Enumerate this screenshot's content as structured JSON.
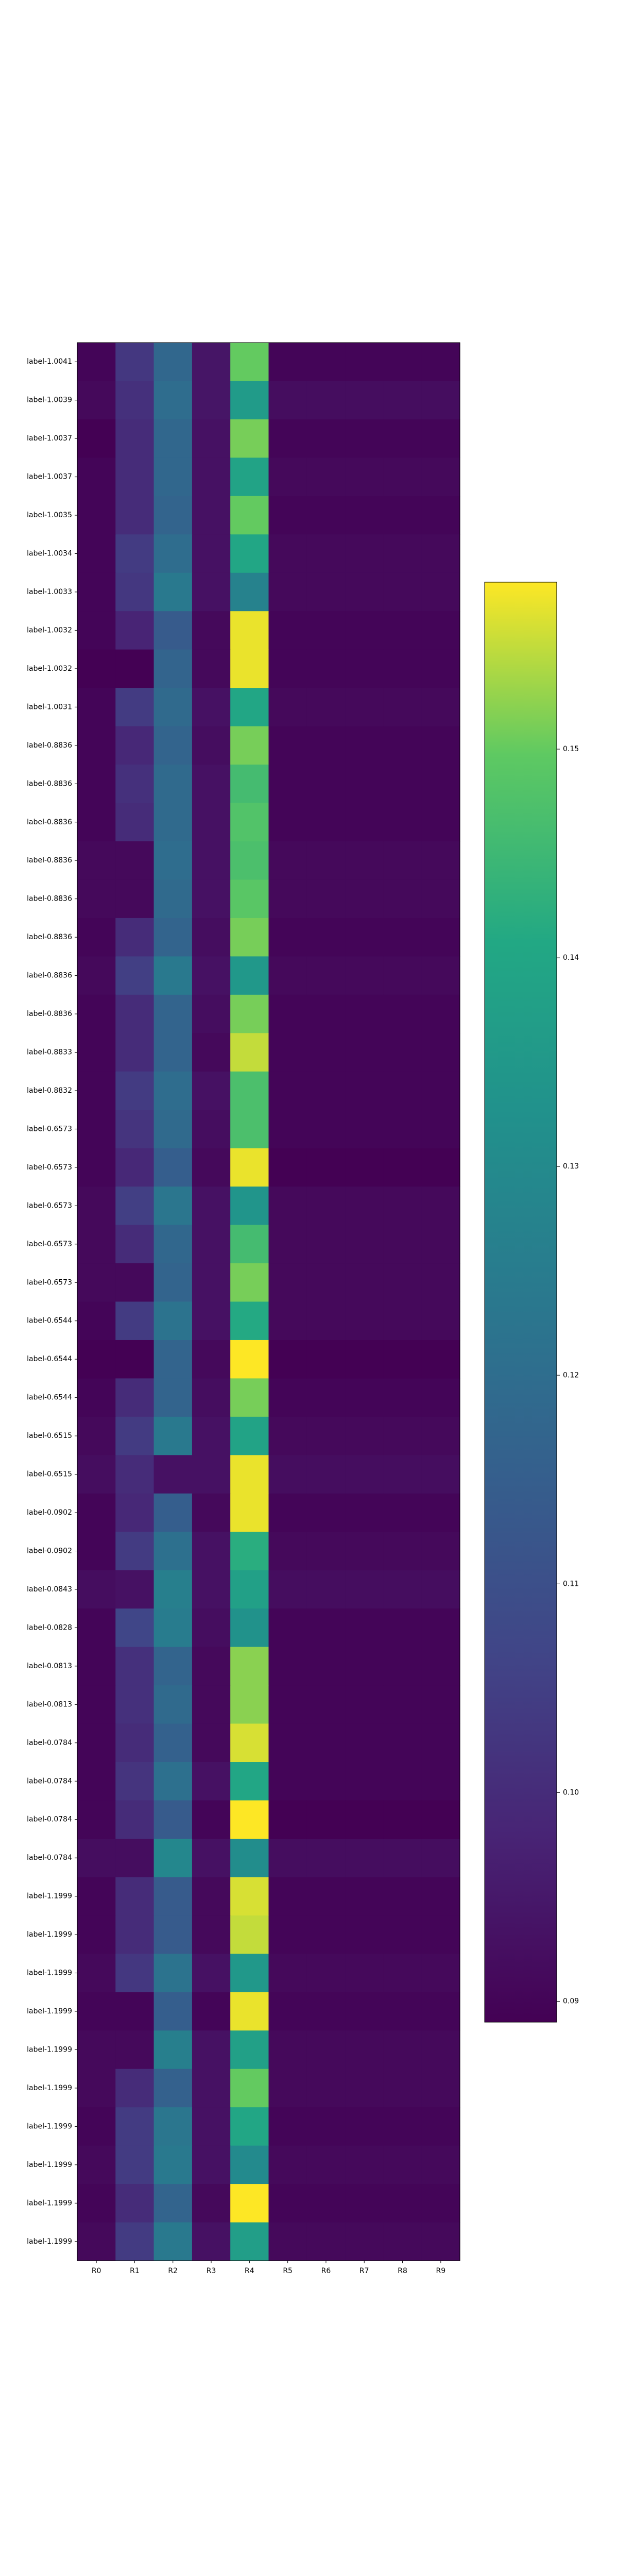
{
  "chart_data": {
    "type": "heatmap",
    "title": "",
    "xlabel": "",
    "ylabel": "",
    "columns": [
      "R0",
      "R1",
      "R2",
      "R3",
      "R4",
      "R5",
      "R6",
      "R7",
      "R8",
      "R9"
    ],
    "rows": [
      "label-1.0041",
      "label-1.0039",
      "label-1.0037",
      "label-1.0037",
      "label-1.0035",
      "label-1.0034",
      "label-1.0033",
      "label-1.0032",
      "label-1.0032",
      "label-1.0031",
      "label-0.8836",
      "label-0.8836",
      "label-0.8836",
      "label-0.8836",
      "label-0.8836",
      "label-0.8836",
      "label-0.8836",
      "label-0.8836",
      "label-0.8833",
      "label-0.8832",
      "label-0.6573",
      "label-0.6573",
      "label-0.6573",
      "label-0.6573",
      "label-0.6573",
      "label-0.6544",
      "label-0.6544",
      "label-0.6544",
      "label-0.6515",
      "label-0.6515",
      "label-0.0902",
      "label-0.0902",
      "label-0.0843",
      "label-0.0828",
      "label-0.0813",
      "label-0.0813",
      "label-0.0784",
      "label-0.0784",
      "label-0.0784",
      "label-0.0784",
      "label-1.1999",
      "label-1.1999",
      "label-1.1999",
      "label-1.1999",
      "label-1.1999",
      "label-1.1999",
      "label-1.1999",
      "label-1.1999",
      "label-1.1999",
      "label-1.1999"
    ],
    "values": [
      [
        0.09,
        0.103,
        0.118,
        0.094,
        0.15,
        0.09,
        0.09,
        0.09,
        0.09,
        0.09
      ],
      [
        0.091,
        0.101,
        0.12,
        0.094,
        0.136,
        0.092,
        0.092,
        0.092,
        0.092,
        0.092
      ],
      [
        0.089,
        0.1,
        0.118,
        0.093,
        0.151,
        0.09,
        0.09,
        0.09,
        0.09,
        0.09
      ],
      [
        0.09,
        0.1,
        0.118,
        0.093,
        0.139,
        0.091,
        0.091,
        0.091,
        0.091,
        0.091
      ],
      [
        0.09,
        0.1,
        0.117,
        0.093,
        0.15,
        0.09,
        0.09,
        0.09,
        0.09,
        0.09
      ],
      [
        0.09,
        0.104,
        0.12,
        0.093,
        0.14,
        0.091,
        0.091,
        0.091,
        0.091,
        0.091
      ],
      [
        0.09,
        0.103,
        0.124,
        0.093,
        0.127,
        0.091,
        0.091,
        0.091,
        0.091,
        0.091
      ],
      [
        0.09,
        0.098,
        0.114,
        0.091,
        0.157,
        0.09,
        0.09,
        0.09,
        0.09,
        0.09
      ],
      [
        0.089,
        0.089,
        0.117,
        0.091,
        0.157,
        0.09,
        0.09,
        0.09,
        0.09,
        0.09
      ],
      [
        0.09,
        0.104,
        0.119,
        0.093,
        0.14,
        0.091,
        0.091,
        0.091,
        0.091,
        0.091
      ],
      [
        0.09,
        0.099,
        0.117,
        0.092,
        0.151,
        0.09,
        0.09,
        0.09,
        0.09,
        0.09
      ],
      [
        0.09,
        0.101,
        0.119,
        0.093,
        0.146,
        0.09,
        0.09,
        0.09,
        0.09,
        0.09
      ],
      [
        0.09,
        0.1,
        0.119,
        0.093,
        0.148,
        0.09,
        0.09,
        0.09,
        0.09,
        0.09
      ],
      [
        0.091,
        0.091,
        0.12,
        0.093,
        0.147,
        0.091,
        0.091,
        0.091,
        0.091,
        0.091
      ],
      [
        0.091,
        0.091,
        0.119,
        0.093,
        0.149,
        0.091,
        0.091,
        0.091,
        0.091,
        0.091
      ],
      [
        0.09,
        0.1,
        0.117,
        0.092,
        0.151,
        0.09,
        0.09,
        0.09,
        0.09,
        0.09
      ],
      [
        0.091,
        0.105,
        0.124,
        0.093,
        0.135,
        0.091,
        0.091,
        0.091,
        0.091,
        0.091
      ],
      [
        0.09,
        0.1,
        0.117,
        0.092,
        0.151,
        0.09,
        0.09,
        0.09,
        0.09,
        0.09
      ],
      [
        0.09,
        0.1,
        0.117,
        0.091,
        0.155,
        0.09,
        0.09,
        0.09,
        0.09,
        0.09
      ],
      [
        0.09,
        0.104,
        0.12,
        0.093,
        0.147,
        0.09,
        0.09,
        0.09,
        0.09,
        0.09
      ],
      [
        0.09,
        0.102,
        0.119,
        0.092,
        0.147,
        0.09,
        0.09,
        0.09,
        0.09,
        0.09
      ],
      [
        0.09,
        0.099,
        0.115,
        0.091,
        0.157,
        0.089,
        0.089,
        0.089,
        0.089,
        0.089
      ],
      [
        0.091,
        0.105,
        0.123,
        0.093,
        0.134,
        0.091,
        0.091,
        0.091,
        0.091,
        0.091
      ],
      [
        0.091,
        0.1,
        0.118,
        0.093,
        0.146,
        0.091,
        0.091,
        0.091,
        0.091,
        0.091
      ],
      [
        0.091,
        0.091,
        0.117,
        0.093,
        0.151,
        0.091,
        0.091,
        0.091,
        0.091,
        0.091
      ],
      [
        0.09,
        0.104,
        0.122,
        0.093,
        0.141,
        0.091,
        0.091,
        0.091,
        0.091,
        0.091
      ],
      [
        0.089,
        0.089,
        0.117,
        0.091,
        0.158,
        0.089,
        0.089,
        0.089,
        0.089,
        0.089
      ],
      [
        0.09,
        0.1,
        0.117,
        0.092,
        0.151,
        0.09,
        0.09,
        0.09,
        0.09,
        0.09
      ],
      [
        0.091,
        0.104,
        0.124,
        0.093,
        0.139,
        0.091,
        0.091,
        0.091,
        0.091,
        0.091
      ],
      [
        0.092,
        0.1,
        0.093,
        0.093,
        0.157,
        0.092,
        0.092,
        0.092,
        0.092,
        0.092
      ],
      [
        0.09,
        0.099,
        0.115,
        0.091,
        0.157,
        0.09,
        0.09,
        0.09,
        0.09,
        0.09
      ],
      [
        0.09,
        0.104,
        0.121,
        0.093,
        0.142,
        0.091,
        0.091,
        0.091,
        0.091,
        0.091
      ],
      [
        0.092,
        0.093,
        0.126,
        0.093,
        0.138,
        0.092,
        0.092,
        0.092,
        0.092,
        0.092
      ],
      [
        0.09,
        0.107,
        0.125,
        0.092,
        0.133,
        0.09,
        0.09,
        0.09,
        0.09,
        0.09
      ],
      [
        0.09,
        0.101,
        0.117,
        0.091,
        0.152,
        0.09,
        0.09,
        0.09,
        0.09,
        0.09
      ],
      [
        0.09,
        0.101,
        0.119,
        0.091,
        0.152,
        0.09,
        0.09,
        0.09,
        0.09,
        0.09
      ],
      [
        0.09,
        0.1,
        0.116,
        0.091,
        0.156,
        0.09,
        0.09,
        0.09,
        0.09,
        0.09
      ],
      [
        0.09,
        0.102,
        0.121,
        0.093,
        0.14,
        0.09,
        0.09,
        0.09,
        0.09,
        0.09
      ],
      [
        0.09,
        0.1,
        0.114,
        0.09,
        0.158,
        0.089,
        0.089,
        0.089,
        0.089,
        0.089
      ],
      [
        0.092,
        0.092,
        0.129,
        0.093,
        0.131,
        0.092,
        0.092,
        0.092,
        0.092,
        0.092
      ],
      [
        0.09,
        0.1,
        0.114,
        0.091,
        0.156,
        0.09,
        0.09,
        0.09,
        0.09,
        0.09
      ],
      [
        0.09,
        0.1,
        0.114,
        0.091,
        0.155,
        0.09,
        0.09,
        0.09,
        0.09,
        0.09
      ],
      [
        0.091,
        0.103,
        0.122,
        0.093,
        0.135,
        0.091,
        0.091,
        0.091,
        0.091,
        0.091
      ],
      [
        0.09,
        0.09,
        0.115,
        0.09,
        0.157,
        0.09,
        0.09,
        0.09,
        0.09,
        0.09
      ],
      [
        0.091,
        0.091,
        0.126,
        0.093,
        0.138,
        0.091,
        0.091,
        0.091,
        0.091,
        0.091
      ],
      [
        0.091,
        0.1,
        0.116,
        0.093,
        0.15,
        0.091,
        0.091,
        0.091,
        0.091,
        0.091
      ],
      [
        0.09,
        0.104,
        0.123,
        0.093,
        0.14,
        0.09,
        0.09,
        0.09,
        0.09,
        0.09
      ],
      [
        0.091,
        0.104,
        0.124,
        0.093,
        0.13,
        0.091,
        0.091,
        0.091,
        0.091,
        0.091
      ],
      [
        0.09,
        0.1,
        0.117,
        0.091,
        0.158,
        0.09,
        0.09,
        0.09,
        0.09,
        0.09
      ],
      [
        0.091,
        0.104,
        0.124,
        0.093,
        0.137,
        0.091,
        0.091,
        0.091,
        0.091,
        0.091
      ]
    ],
    "colormap": "viridis",
    "vmin": 0.089,
    "vmax": 0.158,
    "colorbar_ticks": [
      "0.09",
      "0.10",
      "0.11",
      "0.12",
      "0.13",
      "0.14",
      "0.15"
    ],
    "colorbar_position": "right",
    "grid": false
  }
}
